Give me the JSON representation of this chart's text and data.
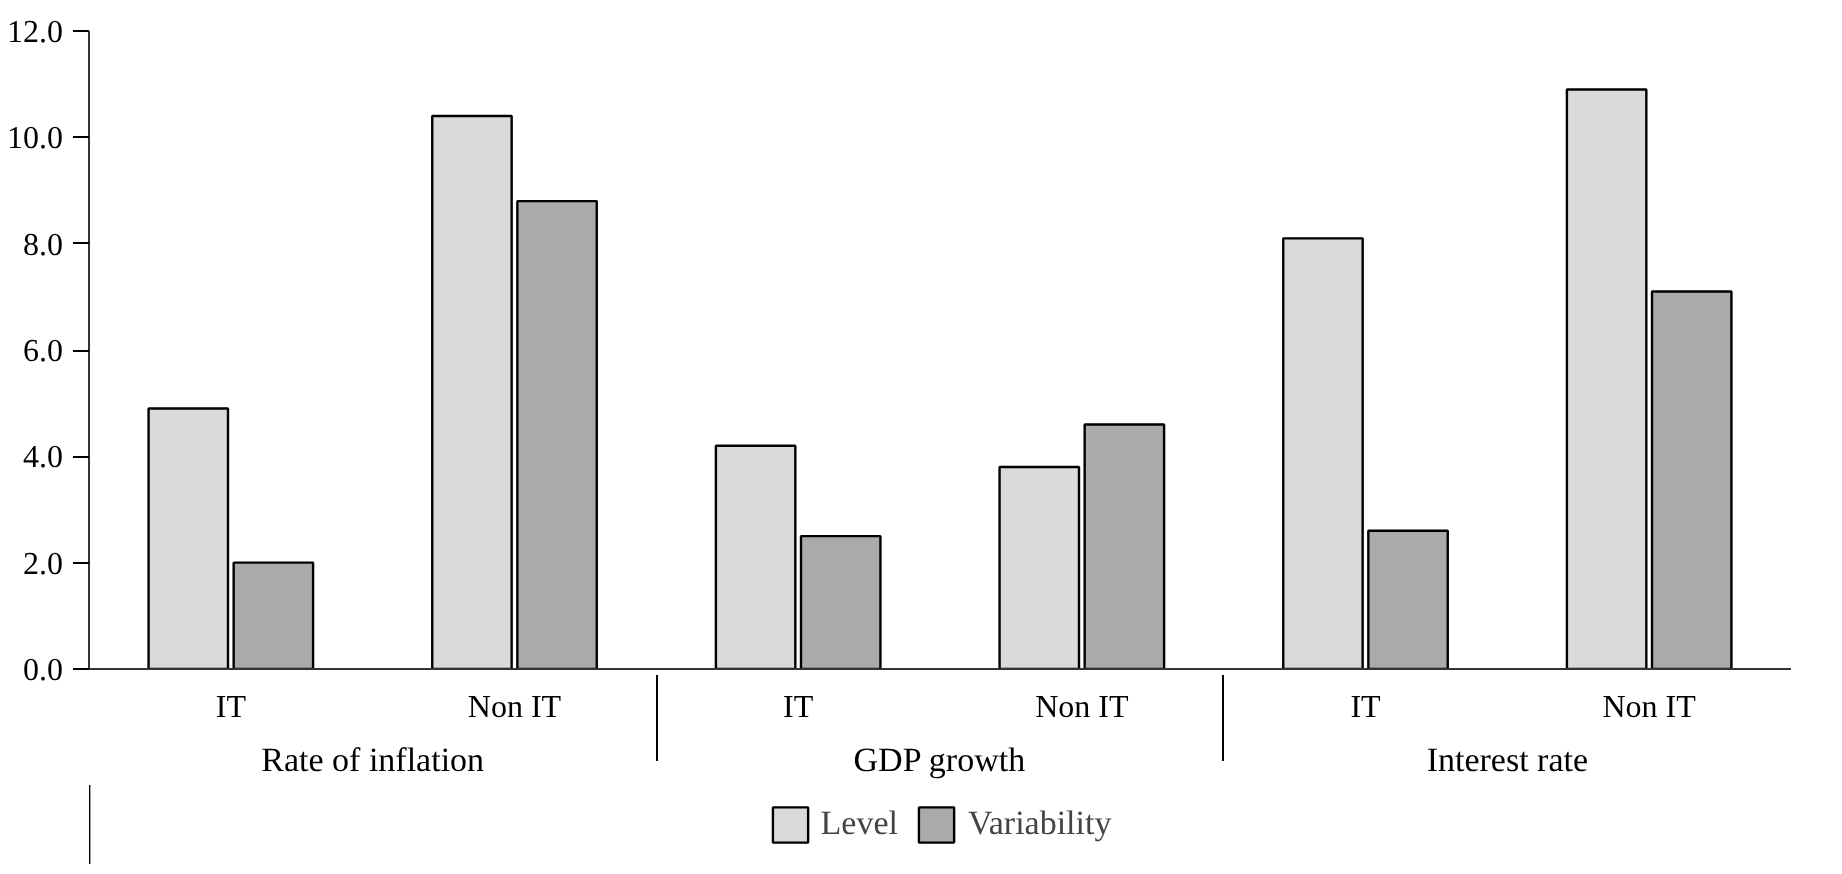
{
  "chart_data": {
    "type": "bar",
    "categories": [
      "IT",
      "Non IT",
      "IT",
      "Non IT",
      "IT",
      "Non IT"
    ],
    "annotations": [
      "Rate of inflation",
      "GDP growth",
      "Interest rate"
    ],
    "series": [
      {
        "name": "Level",
        "color": "#d9dadc",
        "values": [
          4.9,
          10.4,
          4.2,
          3.8,
          8.1,
          10.9
        ]
      },
      {
        "name": "Variability",
        "color": "#a9aaab",
        "values": [
          2.0,
          8.8,
          2.5,
          4.6,
          2.6,
          7.1
        ]
      }
    ],
    "ylim": [
      0,
      12
    ],
    "yticks": [
      {
        "value": 0,
        "label": "0.0"
      },
      {
        "value": 2,
        "label": "2.0"
      },
      {
        "value": 4,
        "label": "4.0"
      },
      {
        "value": 6,
        "label": "6.0"
      },
      {
        "value": 8,
        "label": "8.0"
      },
      {
        "value": 10,
        "label": "10.0"
      },
      {
        "value": 12,
        "label": "12.0"
      }
    ],
    "grid": false,
    "legend": "bottom"
  }
}
